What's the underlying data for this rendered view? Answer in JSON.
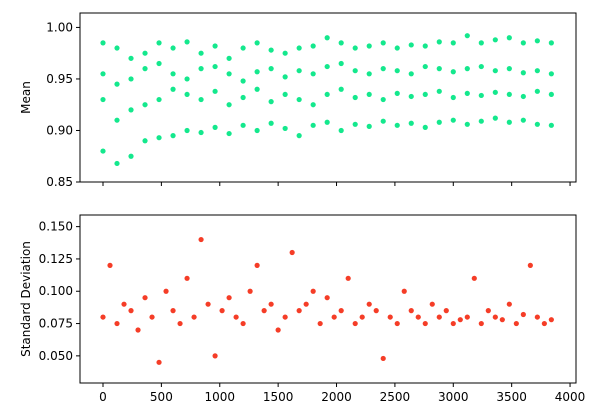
{
  "chart_data": [
    {
      "type": "scatter",
      "ylabel": "Mean",
      "color": "#14e88d",
      "x": [
        0,
        120,
        240,
        360,
        480,
        600,
        720,
        840,
        960,
        1080,
        1200,
        1320,
        1440,
        1560,
        1680,
        1800,
        1920,
        2040,
        2160,
        2280,
        2400,
        2520,
        2640,
        2760,
        2880,
        3000,
        3120,
        3240,
        3360,
        3480,
        3600,
        3720,
        3840,
        0,
        120,
        240,
        360,
        480,
        600,
        720,
        840,
        960,
        1080,
        1200,
        1320,
        1440,
        1560,
        1680,
        1800,
        1920,
        2040,
        2160,
        2280,
        2400,
        2520,
        2640,
        2760,
        2880,
        3000,
        3120,
        3240,
        3360,
        3480,
        3600,
        3720,
        3840,
        0,
        120,
        240,
        360,
        480,
        600,
        720,
        840,
        960,
        1080,
        1200,
        1320,
        1440,
        1560,
        1680,
        1800,
        1920,
        2040,
        2160,
        2280,
        2400,
        2520,
        2640,
        2760,
        2880,
        3000,
        3120,
        3240,
        3360,
        3480,
        3600,
        3720,
        3840,
        0,
        120,
        240,
        360,
        480,
        600,
        720,
        840,
        960,
        1080,
        1200,
        1320,
        1440,
        1560,
        1680,
        1800,
        1920,
        2040,
        2160,
        2280,
        2400,
        2520,
        2640,
        2760,
        2880,
        3000,
        3120,
        3240,
        3360,
        3480,
        3600,
        3720,
        3840
      ],
      "values": [
        0.88,
        0.868,
        0.875,
        0.89,
        0.893,
        0.895,
        0.9,
        0.898,
        0.903,
        0.897,
        0.905,
        0.9,
        0.907,
        0.902,
        0.895,
        0.905,
        0.908,
        0.9,
        0.906,
        0.904,
        0.909,
        0.905,
        0.907,
        0.903,
        0.908,
        0.91,
        0.906,
        0.909,
        0.912,
        0.908,
        0.91,
        0.906,
        0.905,
        0.93,
        0.91,
        0.92,
        0.925,
        0.93,
        0.94,
        0.935,
        0.93,
        0.938,
        0.925,
        0.932,
        0.94,
        0.928,
        0.935,
        0.93,
        0.925,
        0.935,
        0.94,
        0.932,
        0.935,
        0.93,
        0.936,
        0.933,
        0.935,
        0.938,
        0.932,
        0.936,
        0.934,
        0.937,
        0.935,
        0.933,
        0.938,
        0.935,
        0.955,
        0.945,
        0.95,
        0.96,
        0.965,
        0.955,
        0.95,
        0.96,
        0.962,
        0.955,
        0.948,
        0.957,
        0.96,
        0.952,
        0.958,
        0.955,
        0.962,
        0.965,
        0.958,
        0.955,
        0.96,
        0.958,
        0.955,
        0.962,
        0.96,
        0.957,
        0.96,
        0.962,
        0.958,
        0.96,
        0.956,
        0.958,
        0.955,
        0.985,
        0.98,
        0.97,
        0.975,
        0.985,
        0.98,
        0.986,
        0.975,
        0.982,
        0.97,
        0.98,
        0.985,
        0.978,
        0.975,
        0.98,
        0.982,
        0.99,
        0.985,
        0.98,
        0.982,
        0.985,
        0.98,
        0.983,
        0.982,
        0.986,
        0.985,
        0.992,
        0.985,
        0.988,
        0.99,
        0.985,
        0.987,
        0.985
      ],
      "xlim": [
        -197,
        4051
      ],
      "ylim": [
        0.85,
        1.014
      ],
      "xticks": [
        0,
        500,
        1000,
        1500,
        2000,
        2500,
        3000,
        3500,
        4000
      ],
      "yticks": [
        0.85,
        {
          "value": 0.9,
          "label": "0.90"
        },
        0.95,
        {
          "value": 1,
          "label": "1.00"
        }
      ]
    },
    {
      "type": "scatter",
      "ylabel": "Standard Deviation",
      "color": "#f53d27",
      "x": [
        0,
        60,
        120,
        180,
        240,
        300,
        360,
        420,
        480,
        540,
        600,
        660,
        720,
        780,
        840,
        900,
        960,
        1020,
        1080,
        1140,
        1200,
        1260,
        1320,
        1380,
        1440,
        1500,
        1560,
        1620,
        1680,
        1740,
        1800,
        1860,
        1920,
        1980,
        2040,
        2100,
        2160,
        2220,
        2280,
        2340,
        2400,
        2460,
        2520,
        2580,
        2640,
        2700,
        2760,
        2820,
        2880,
        2940,
        3000,
        3060,
        3120,
        3180,
        3240,
        3300,
        3360,
        3420,
        3480,
        3540,
        3600,
        3660,
        3720,
        3780,
        3840
      ],
      "values": [
        0.08,
        0.12,
        0.075,
        0.09,
        0.085,
        0.07,
        0.095,
        0.08,
        0.045,
        0.1,
        0.085,
        0.075,
        0.11,
        0.08,
        0.14,
        0.09,
        0.05,
        0.085,
        0.095,
        0.08,
        0.075,
        0.1,
        0.12,
        0.085,
        0.09,
        0.07,
        0.08,
        0.13,
        0.085,
        0.09,
        0.1,
        0.075,
        0.095,
        0.08,
        0.085,
        0.11,
        0.075,
        0.08,
        0.09,
        0.085,
        0.048,
        0.08,
        0.075,
        0.1,
        0.085,
        0.08,
        0.075,
        0.09,
        0.08,
        0.085,
        0.075,
        0.078,
        0.08,
        0.11,
        0.075,
        0.085,
        0.08,
        0.078,
        0.09,
        0.075,
        0.082,
        0.12,
        0.08,
        0.075,
        0.078
      ],
      "xlim": [
        -197,
        4051
      ],
      "ylim": [
        0.029,
        0.159
      ],
      "xticks": [
        0,
        500,
        1000,
        1500,
        2000,
        2500,
        3000,
        3500,
        4000
      ],
      "yticks": [
        {
          "value": 0.05,
          "label": "0.050"
        },
        {
          "value": 0.075,
          "label": "0.075"
        },
        {
          "value": 0.1,
          "label": "0.100"
        },
        {
          "value": 0.125,
          "label": "0.125"
        },
        {
          "value": 0.15,
          "label": "0.150"
        }
      ]
    }
  ]
}
